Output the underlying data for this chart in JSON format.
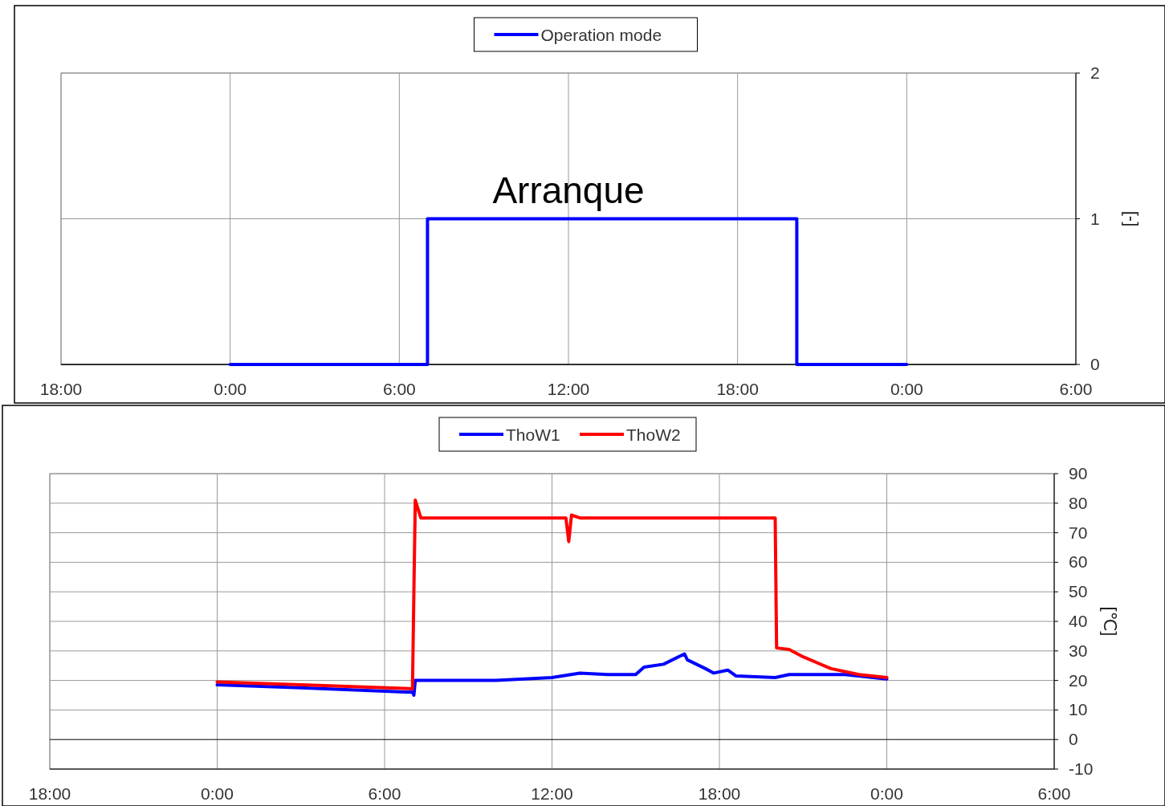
{
  "chart_data": [
    {
      "type": "step",
      "xlim": [
        "2000-01-01T18:00",
        "2000-01-03T06:00"
      ],
      "xticks": [
        {
          "value": "2000-01-01T18:00",
          "label": "18:00"
        },
        {
          "value": "2000-01-02T00:00",
          "label": "0:00"
        },
        {
          "value": "2000-01-02T06:00",
          "label": "6:00"
        },
        {
          "value": "2000-01-02T12:00",
          "label": "12:00"
        },
        {
          "value": "2000-01-02T18:00",
          "label": "18:00"
        },
        {
          "value": "2000-01-03T00:00",
          "label": "0:00"
        },
        {
          "value": "2000-01-03T06:00",
          "label": "6:00"
        }
      ],
      "ylim": [
        0,
        2
      ],
      "yticks": [
        0,
        1,
        2
      ],
      "ylabel": "[-]",
      "grid": true,
      "legend": "top",
      "annotations": [
        {
          "text": "Arranque",
          "x": "2000-01-02T12:00",
          "y": 1
        }
      ],
      "series": [
        {
          "name": "Operation mode",
          "color": "#0000ff",
          "x": [
            "2000-01-02T00:00",
            "2000-01-02T07:00",
            "2000-01-02T20:06",
            "2000-01-03T00:00"
          ],
          "values": [
            0,
            1,
            0,
            0
          ]
        }
      ]
    },
    {
      "type": "line",
      "xlim": [
        "2000-01-01T18:00",
        "2000-01-03T06:00"
      ],
      "xticks": [
        {
          "value": "2000-01-01T18:00",
          "label": "18:00"
        },
        {
          "value": "2000-01-02T00:00",
          "label": "0:00"
        },
        {
          "value": "2000-01-02T06:00",
          "label": "6:00"
        },
        {
          "value": "2000-01-02T12:00",
          "label": "12:00"
        },
        {
          "value": "2000-01-02T18:00",
          "label": "18:00"
        },
        {
          "value": "2000-01-03T00:00",
          "label": "0:00"
        },
        {
          "value": "2000-01-03T06:00",
          "label": "6:00"
        }
      ],
      "ylim": [
        -10,
        90
      ],
      "yticks": [
        -10,
        0,
        10,
        20,
        30,
        40,
        50,
        60,
        70,
        80,
        90
      ],
      "ylabel": "[℃]",
      "grid": true,
      "legend": "top",
      "series": [
        {
          "name": "ThoW1",
          "color": "#0000ff",
          "x": [
            "2000-01-02T00:00",
            "2000-01-02T03:00",
            "2000-01-02T07:00",
            "2000-01-02T07:03",
            "2000-01-02T07:06",
            "2000-01-02T10:00",
            "2000-01-02T12:00",
            "2000-01-02T13:00",
            "2000-01-02T14:00",
            "2000-01-02T15:00",
            "2000-01-02T15:18",
            "2000-01-02T16:00",
            "2000-01-02T16:45",
            "2000-01-02T16:51",
            "2000-01-02T17:30",
            "2000-01-02T17:48",
            "2000-01-02T18:18",
            "2000-01-02T18:36",
            "2000-01-02T20:00",
            "2000-01-02T20:30",
            "2000-01-02T22:30",
            "2000-01-03T00:00"
          ],
          "values": [
            18.5,
            17.5,
            16,
            15,
            20,
            20,
            21,
            22.5,
            22,
            22,
            24.5,
            25.5,
            29,
            27,
            24,
            22.5,
            23.5,
            21.5,
            21,
            22,
            22,
            20.5
          ]
        },
        {
          "name": "ThoW2",
          "color": "#ff0000",
          "x": [
            "2000-01-02T00:00",
            "2000-01-02T03:00",
            "2000-01-02T07:00",
            "2000-01-02T07:03",
            "2000-01-02T07:06",
            "2000-01-02T07:18",
            "2000-01-02T12:30",
            "2000-01-02T12:36",
            "2000-01-02T12:42",
            "2000-01-02T13:00",
            "2000-01-02T20:00",
            "2000-01-02T20:03",
            "2000-01-02T20:30",
            "2000-01-02T21:00",
            "2000-01-02T22:00",
            "2000-01-02T23:00",
            "2000-01-03T00:00"
          ],
          "values": [
            19.5,
            18.5,
            17.2,
            50,
            81,
            75,
            75,
            67,
            76,
            75,
            75,
            31,
            30.5,
            28,
            24,
            22,
            21
          ]
        }
      ]
    }
  ]
}
